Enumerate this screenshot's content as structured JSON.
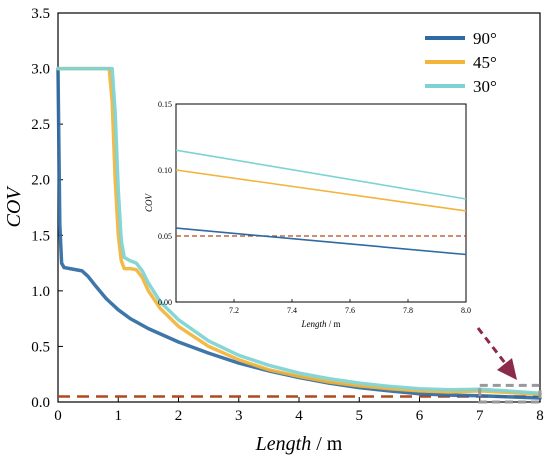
{
  "chart_data": [
    {
      "type": "line",
      "xlabel": "Length",
      "xunit": " / m",
      "ylabel": "COV",
      "xlim": [
        0,
        8
      ],
      "ylim": [
        0,
        3.5
      ],
      "xticks": [
        "0",
        "1",
        "2",
        "3",
        "4",
        "5",
        "6",
        "7",
        "8"
      ],
      "yticks": [
        "0.0",
        "0.5",
        "1.0",
        "1.5",
        "2.0",
        "2.5",
        "3.0",
        "3.5"
      ],
      "legend_position": "top-right",
      "reference_line": {
        "y": 0.05,
        "style": "dashed",
        "color": "#b04a1e"
      },
      "highlight_box": {
        "x": [
          7.0,
          8.0
        ],
        "y": [
          0.0,
          0.15
        ],
        "style": "dashed",
        "color": "#999999"
      },
      "series": [
        {
          "name": "90°",
          "color": "#2e6aa3",
          "x": [
            0.0,
            0.03,
            0.06,
            0.1,
            0.2,
            0.4,
            0.5,
            0.6,
            0.8,
            1.0,
            1.2,
            1.5,
            2.0,
            2.5,
            3.0,
            3.5,
            4.0,
            4.5,
            5.0,
            5.5,
            6.0,
            6.5,
            7.0,
            7.5,
            8.0
          ],
          "y": [
            3.0,
            1.6,
            1.25,
            1.21,
            1.2,
            1.18,
            1.13,
            1.06,
            0.93,
            0.83,
            0.75,
            0.66,
            0.54,
            0.44,
            0.35,
            0.28,
            0.22,
            0.17,
            0.13,
            0.1,
            0.075,
            0.062,
            0.056,
            0.046,
            0.036
          ]
        },
        {
          "name": "45°",
          "color": "#f2b43a",
          "x": [
            0.0,
            0.8,
            0.85,
            0.9,
            0.95,
            1.0,
            1.05,
            1.1,
            1.2,
            1.3,
            1.4,
            1.5,
            1.7,
            2.0,
            2.5,
            3.0,
            3.5,
            4.0,
            4.5,
            5.0,
            5.5,
            6.0,
            6.5,
            7.0,
            7.5,
            8.0
          ],
          "y": [
            3.0,
            3.0,
            3.0,
            2.7,
            2.0,
            1.5,
            1.27,
            1.2,
            1.2,
            1.19,
            1.12,
            1.0,
            0.84,
            0.68,
            0.5,
            0.38,
            0.29,
            0.23,
            0.18,
            0.145,
            0.12,
            0.1,
            0.09,
            0.1,
            0.085,
            0.07
          ]
        },
        {
          "name": "30°",
          "color": "#7dd3d3",
          "x": [
            0.0,
            0.85,
            0.9,
            0.95,
            1.0,
            1.05,
            1.1,
            1.2,
            1.3,
            1.4,
            1.5,
            1.7,
            2.0,
            2.5,
            3.0,
            3.5,
            4.0,
            4.5,
            5.0,
            5.5,
            6.0,
            6.5,
            7.0,
            7.5,
            8.0
          ],
          "y": [
            3.0,
            3.0,
            3.0,
            2.6,
            1.9,
            1.45,
            1.3,
            1.27,
            1.25,
            1.18,
            1.07,
            0.9,
            0.74,
            0.55,
            0.42,
            0.33,
            0.26,
            0.21,
            0.17,
            0.14,
            0.12,
            0.11,
            0.115,
            0.098,
            0.078
          ]
        }
      ]
    },
    {
      "type": "line",
      "role": "inset",
      "xlabel": "Length",
      "xunit": " / m",
      "ylabel": "COV",
      "xlim": [
        7.0,
        8.0
      ],
      "ylim": [
        0.0,
        0.15
      ],
      "xticks": [
        "7.2",
        "7.4",
        "7.6",
        "7.8",
        "8.0"
      ],
      "xtick_values": [
        7.2,
        7.4,
        7.6,
        7.8,
        8.0
      ],
      "yticks": [
        "0.00",
        "0.05",
        "0.10",
        "0.15"
      ],
      "ytick_values": [
        0.0,
        0.05,
        0.1,
        0.15
      ],
      "reference_line": {
        "y": 0.05,
        "style": "dashed",
        "color": "#b04a1e"
      },
      "series": [
        {
          "name": "90°",
          "color": "#2e6aa3",
          "x": [
            7.0,
            8.0
          ],
          "y": [
            0.056,
            0.036
          ]
        },
        {
          "name": "45°",
          "color": "#f2b43a",
          "x": [
            7.0,
            8.0
          ],
          "y": [
            0.1,
            0.069
          ]
        },
        {
          "name": "30°",
          "color": "#7dd3d3",
          "x": [
            7.0,
            8.0
          ],
          "y": [
            0.115,
            0.078
          ]
        }
      ]
    }
  ]
}
